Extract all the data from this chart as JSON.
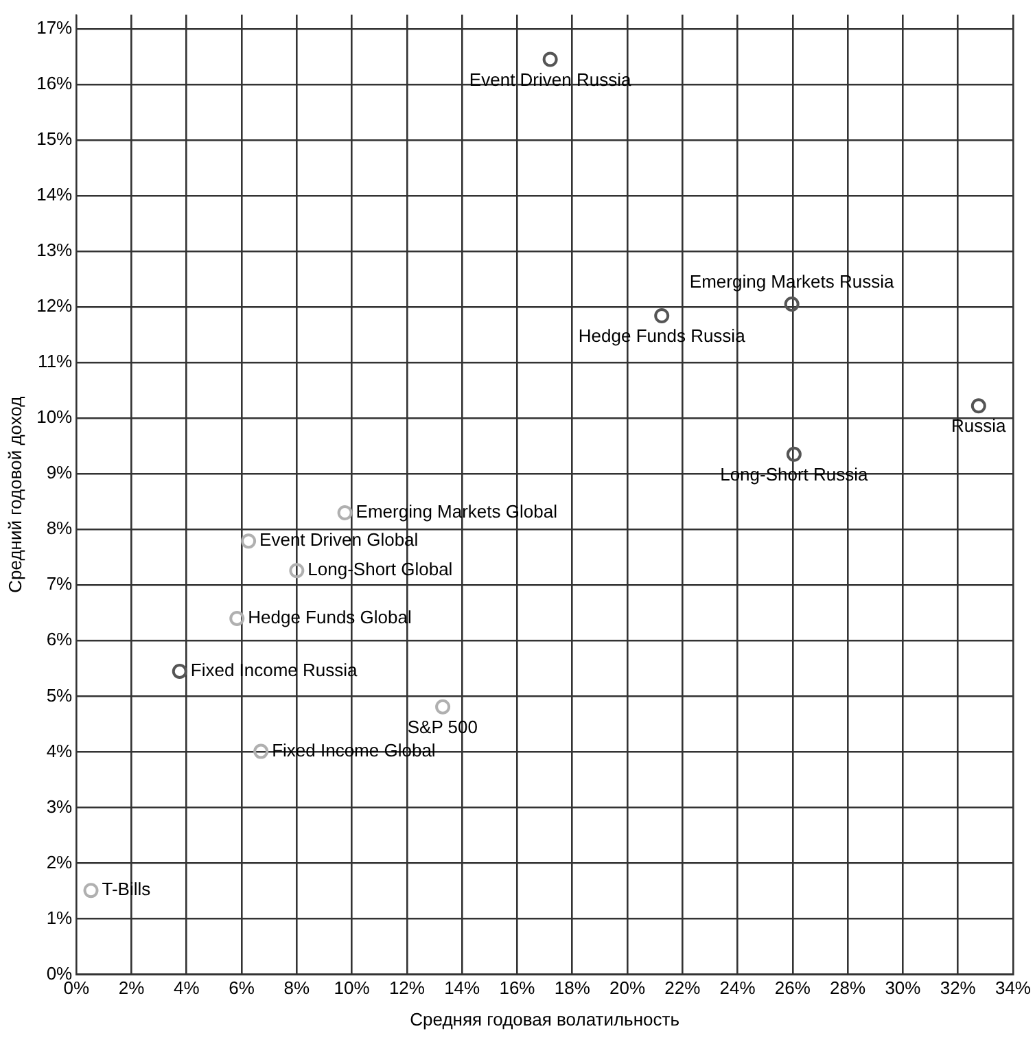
{
  "chart_data": {
    "type": "scatter",
    "xlabel": "Средняя годовая волатильность",
    "ylabel": "Средний годовой доход",
    "xlim": [
      0,
      34
    ],
    "ylim": [
      0,
      17.25
    ],
    "xticks": [
      {
        "value": 0,
        "label": "0%"
      },
      {
        "value": 2,
        "label": "2%"
      },
      {
        "value": 4,
        "label": "4%"
      },
      {
        "value": 6,
        "label": "6%"
      },
      {
        "value": 8,
        "label": "8%"
      },
      {
        "value": 10,
        "label": "10%"
      },
      {
        "value": 12,
        "label": "12%"
      },
      {
        "value": 14,
        "label": "14%"
      },
      {
        "value": 16,
        "label": "16%"
      },
      {
        "value": 18,
        "label": "18%"
      },
      {
        "value": 20,
        "label": "20%"
      },
      {
        "value": 22,
        "label": "22%"
      },
      {
        "value": 24,
        "label": "24%"
      },
      {
        "value": 26,
        "label": "26%"
      },
      {
        "value": 28,
        "label": "28%"
      },
      {
        "value": 30,
        "label": "30%"
      },
      {
        "value": 32,
        "label": "32%"
      },
      {
        "value": 34,
        "label": "34%"
      }
    ],
    "yticks": [
      {
        "value": 0,
        "label": "0%"
      },
      {
        "value": 1,
        "label": "1%"
      },
      {
        "value": 2,
        "label": "2%"
      },
      {
        "value": 3,
        "label": "3%"
      },
      {
        "value": 4,
        "label": "4%"
      },
      {
        "value": 5,
        "label": "5%"
      },
      {
        "value": 6,
        "label": "6%"
      },
      {
        "value": 7,
        "label": "7%"
      },
      {
        "value": 8,
        "label": "8%"
      },
      {
        "value": 9,
        "label": "9%"
      },
      {
        "value": 10,
        "label": "10%"
      },
      {
        "value": 11,
        "label": "11%"
      },
      {
        "value": 12,
        "label": "12%"
      },
      {
        "value": 13,
        "label": "13%"
      },
      {
        "value": 14,
        "label": "14%"
      },
      {
        "value": 15,
        "label": "15%"
      },
      {
        "value": 16,
        "label": "16%"
      },
      {
        "value": 17,
        "label": "17%"
      }
    ],
    "grid": true,
    "legend": false,
    "marker": "circle",
    "series": [
      {
        "color": "#555555",
        "x": [
          17.2,
          21.25,
          25.97,
          32.75,
          26.05,
          3.75
        ],
        "values": [
          16.45,
          11.84,
          12.05,
          10.22,
          9.35,
          5.45
        ]
      },
      {
        "color": "#b0b0b0",
        "x": [
          9.75,
          6.25,
          8.0,
          5.83,
          6.7,
          13.3,
          0.53
        ],
        "values": [
          8.3,
          7.79,
          7.26,
          6.4,
          4.01,
          4.81,
          1.51
        ]
      }
    ],
    "annotations": [
      {
        "text": "Event Driven Russia",
        "x": 17.2,
        "y": 16.45
      },
      {
        "text": "Hedge Funds Russia",
        "x": 21.25,
        "y": 11.84
      },
      {
        "text": "Emerging Markets Russia",
        "x": 25.97,
        "y": 12.05
      },
      {
        "text": "Russia",
        "x": 32.75,
        "y": 10.22
      },
      {
        "text": "Long-Short Russia",
        "x": 26.05,
        "y": 9.35
      },
      {
        "text": "Fixed Income Russia",
        "x": 3.75,
        "y": 5.45
      },
      {
        "text": "Emerging Markets Global",
        "x": 9.75,
        "y": 8.3
      },
      {
        "text": "Event Driven Global",
        "x": 6.25,
        "y": 7.79
      },
      {
        "text": "Long-Short Global",
        "x": 8.0,
        "y": 7.26
      },
      {
        "text": "Hedge Funds Global",
        "x": 5.83,
        "y": 6.4
      },
      {
        "text": "Fixed Income Global",
        "x": 6.7,
        "y": 4.01
      },
      {
        "text": "S&P 500",
        "x": 13.3,
        "y": 4.81
      },
      {
        "text": "T-Bills",
        "x": 0.53,
        "y": 1.51
      }
    ]
  }
}
